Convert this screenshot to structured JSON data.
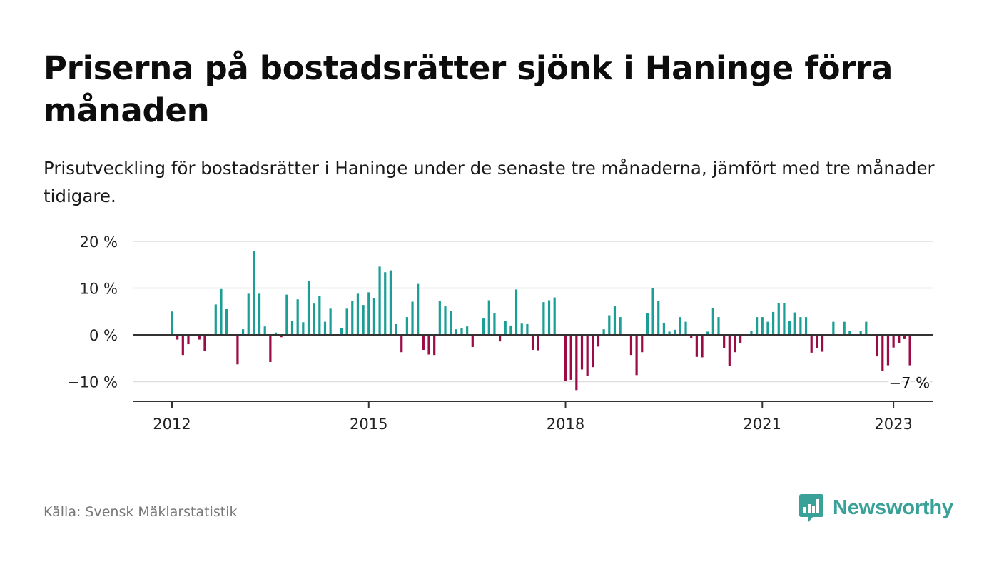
{
  "header": {
    "title": "Priserna på bostadsrätter sjönk i Haninge förra månaden",
    "subtitle": "Prisutveckling för bostadsrätter i Haninge under de senaste tre månaderna, jämfört med tre månader tidigare."
  },
  "footer": {
    "source": "Källa: Svensk Mäklarstatistik",
    "brand": "Newsworthy"
  },
  "colors": {
    "positive": "#1a9e95",
    "negative": "#9c0b45",
    "brand": "#3aa198",
    "grid": "#dddddd",
    "zero_line": "#333333",
    "text": "#111111",
    "muted": "#777777"
  },
  "chart_data": {
    "type": "bar",
    "x_start": "2012-01",
    "x_ticks": [
      "2012",
      "2015",
      "2018",
      "2021",
      "2023"
    ],
    "y_ticks": [
      "20 %",
      "10 %",
      "0 %",
      "−10 %"
    ],
    "ylim": [
      -14,
      20
    ],
    "unit": "%",
    "grid": true,
    "last_value_label": "−7 %",
    "values": [
      5,
      -1,
      -4.3,
      -2,
      0,
      -1,
      -3.5,
      0,
      6.5,
      9.8,
      5.5,
      0,
      -6.3,
      1.2,
      8.8,
      18,
      8.8,
      1.8,
      -5.8,
      0.5,
      -0.5,
      8.6,
      3,
      7.6,
      2.7,
      11.5,
      6.7,
      8.4,
      2.8,
      5.6,
      0,
      1.4,
      5.6,
      7.3,
      8.8,
      6.4,
      9.1,
      7.8,
      14.6,
      13.4,
      13.8,
      2.3,
      -3.7,
      3.8,
      7.1,
      10.9,
      -3.2,
      -4.2,
      -4.3,
      7.3,
      6.1,
      5.1,
      1.2,
      1.4,
      1.8,
      -2.6,
      0,
      3.5,
      7.4,
      4.6,
      -1.4,
      2.9,
      2,
      9.7,
      2.4,
      2.3,
      -3.2,
      -3.3,
      7,
      7.4,
      8,
      0,
      -9.8,
      -9.6,
      -11.8,
      -7.4,
      -8.7,
      -6.9,
      -2.5,
      1.2,
      4.2,
      6.1,
      3.8,
      0,
      -4.3,
      -8.6,
      -3.7,
      4.6,
      10,
      7.2,
      2.6,
      0.7,
      1.1,
      3.8,
      2.8,
      -0.7,
      -4.7,
      -4.8,
      0.7,
      5.8,
      3.8,
      -2.8,
      -6.6,
      -3.7,
      -1.8,
      0,
      0.8,
      3.8,
      3.8,
      2.8,
      4.9,
      6.8,
      6.8,
      2.9,
      4.8,
      3.8,
      3.8,
      -3.8,
      -2.8,
      -3.6,
      0,
      2.8,
      0,
      2.8,
      0.8,
      0,
      0.8,
      2.8,
      0,
      -4.6,
      -7.7,
      -6.5,
      -2.7,
      -1.8,
      -0.9,
      -6.5
    ]
  }
}
